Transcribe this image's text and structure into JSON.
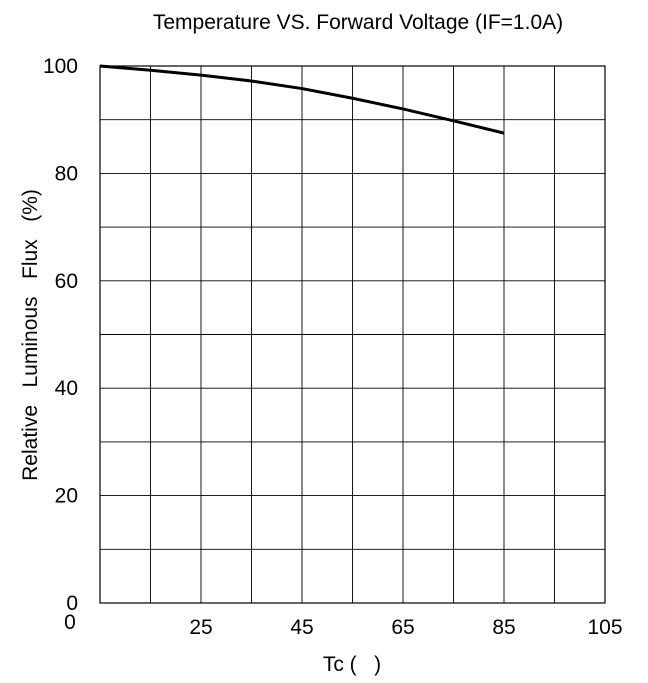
{
  "chart_data": {
    "type": "line",
    "title": "Temperature VS. Forward Voltage (IF=1.0A)",
    "xlabel": "Tc (   )",
    "ylabel": "Relative   Luminous   Flux   (%)",
    "xlim": [
      5,
      105
    ],
    "ylim": [
      0,
      100
    ],
    "x_ticks": [
      25,
      45,
      65,
      85,
      105
    ],
    "x_tick_labels": [
      "25",
      "45",
      "65",
      "85",
      "105"
    ],
    "x_grid_step": 10,
    "y_ticks": [
      0,
      20,
      40,
      60,
      80,
      100
    ],
    "y_tick_labels": [
      "0",
      "20",
      "40",
      "60",
      "80",
      "100"
    ],
    "y_grid_step": 10,
    "grid": true,
    "legend": "none",
    "series": [
      {
        "color": "#000000",
        "x": [
          5,
          15,
          25,
          35,
          45,
          55,
          65,
          75,
          85
        ],
        "y": [
          100,
          99.2,
          98.3,
          97.2,
          95.8,
          94.0,
          92.0,
          89.8,
          87.5
        ]
      }
    ]
  }
}
